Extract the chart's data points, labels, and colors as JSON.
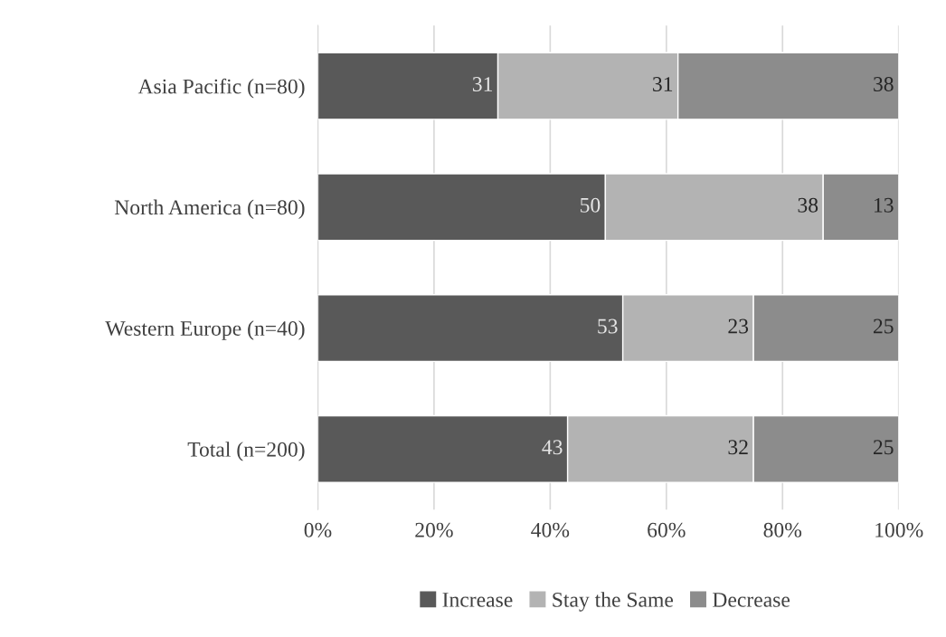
{
  "chart_data": {
    "type": "bar",
    "orientation": "horizontal",
    "stacked": true,
    "categories": [
      "Asia Pacific (n=80)",
      "North America (n=80)",
      "Western Europe (n=40)",
      "Total (n=200)"
    ],
    "series": [
      {
        "name": "Increase",
        "color": "#595959",
        "values": [
          31,
          49.5,
          52.5,
          43
        ],
        "value_labels": [
          "31",
          "50",
          "53",
          "43"
        ]
      },
      {
        "name": "Stay the Same",
        "color": "#b3b3b3",
        "values": [
          31,
          37.5,
          22.5,
          32
        ],
        "value_labels": [
          "31",
          "38",
          "23",
          "32"
        ]
      },
      {
        "name": "Decrease",
        "color": "#8c8c8c",
        "values": [
          38,
          13,
          25,
          25
        ],
        "value_labels": [
          "38",
          "13",
          "25",
          "25"
        ]
      }
    ],
    "xlim": [
      0,
      100
    ],
    "xticks": [
      {
        "value": 0,
        "label": "0%"
      },
      {
        "value": 20,
        "label": "20%"
      },
      {
        "value": 40,
        "label": "40%"
      },
      {
        "value": 60,
        "label": "60%"
      },
      {
        "value": 80,
        "label": "80%"
      },
      {
        "value": 100,
        "label": "100%"
      }
    ],
    "grid": "x",
    "legend": "bottom"
  }
}
